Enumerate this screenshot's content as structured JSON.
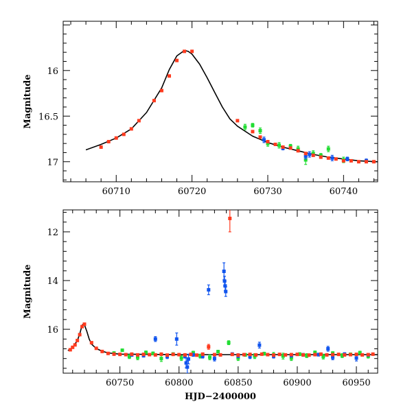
{
  "chart_data": [
    {
      "type": "scatter",
      "title": "",
      "xlabel": "",
      "ylabel": "Magnitude",
      "xlim": [
        60703,
        60744.5
      ],
      "ylim": [
        17.22,
        15.46
      ],
      "y_inverted": true,
      "x_ticks": [
        60710,
        60720,
        60730,
        60740
      ],
      "x_tick_labels": [
        "60710",
        "60720",
        "60730",
        "60740"
      ],
      "y_ticks": [
        16,
        16.5,
        17
      ],
      "y_tick_labels": [
        "16",
        "16.5",
        "17"
      ],
      "model_curve": {
        "name": "model",
        "color": "#000000",
        "x": [
          60706,
          60708,
          60710,
          60712,
          60714,
          60716,
          60717,
          60718,
          60719,
          60719.5,
          60720,
          60721,
          60722,
          60723,
          60724,
          60725,
          60726,
          60728,
          60730,
          60732,
          60734,
          60736,
          60738,
          60740,
          60742,
          60744.5
        ],
        "y": [
          16.87,
          16.81,
          16.74,
          16.64,
          16.46,
          16.19,
          15.99,
          15.84,
          15.78,
          15.79,
          15.82,
          15.93,
          16.08,
          16.24,
          16.4,
          16.53,
          16.61,
          16.72,
          16.79,
          16.84,
          16.88,
          16.92,
          16.95,
          16.97,
          16.99,
          17.0
        ]
      },
      "series": [
        {
          "name": "red",
          "color": "#ff3b1f",
          "x": [
            60708,
            60709,
            60710,
            60711,
            60712,
            60713,
            60715,
            60716,
            60717,
            60718,
            60719,
            60720,
            60726,
            60728,
            60729,
            60730,
            60731,
            60732,
            60733,
            60734,
            60735,
            60736,
            60737,
            60738,
            60739,
            60740,
            60741,
            60742,
            60743,
            60744
          ],
          "y": [
            16.84,
            16.78,
            16.74,
            16.7,
            16.64,
            16.55,
            16.33,
            16.22,
            16.06,
            15.89,
            15.79,
            15.79,
            16.55,
            16.67,
            16.73,
            16.78,
            16.81,
            16.84,
            16.85,
            16.88,
            16.91,
            16.93,
            16.95,
            16.96,
            16.97,
            16.99,
            16.99,
            17.0,
            17.0,
            17.0
          ],
          "err": [
            0.01,
            0.01,
            0.01,
            0.01,
            0.01,
            0.01,
            0.01,
            0.01,
            0.01,
            0.01,
            0.01,
            0.01,
            0.01,
            0.01,
            0.01,
            0.01,
            0.01,
            0.01,
            0.01,
            0.01,
            0.01,
            0.01,
            0.01,
            0.01,
            0.01,
            0.01,
            0.01,
            0.01,
            0.01,
            0.01
          ]
        },
        {
          "name": "green",
          "color": "#22dd33",
          "x": [
            60727,
            60728,
            60729,
            60730,
            60731.5,
            60733,
            60734,
            60735,
            60736,
            60737,
            60738,
            60740
          ],
          "y": [
            16.62,
            16.6,
            16.66,
            16.8,
            16.82,
            16.83,
            16.86,
            16.98,
            16.91,
            16.93,
            16.86,
            16.98
          ],
          "err": [
            0.03,
            0.02,
            0.03,
            0.03,
            0.03,
            0.02,
            0.03,
            0.05,
            0.03,
            0.02,
            0.03,
            0.03
          ]
        },
        {
          "name": "blue",
          "color": "#1155ee",
          "x": [
            60729.5,
            60732,
            60735,
            60735.5,
            60738.5,
            60740.5,
            60743
          ],
          "y": [
            16.76,
            16.85,
            16.94,
            16.92,
            16.96,
            16.97,
            16.99
          ],
          "err": [
            0.03,
            0.02,
            0.03,
            0.03,
            0.03,
            0.02,
            0.02
          ]
        }
      ]
    },
    {
      "type": "scatter",
      "title": "",
      "xlabel": "HJD−2400000",
      "ylabel": "Magnitude",
      "xlim": [
        60702,
        60968
      ],
      "ylim": [
        17.8,
        11.1
      ],
      "y_inverted": true,
      "x_ticks": [
        60750,
        60800,
        60850,
        60900,
        60950
      ],
      "x_tick_labels": [
        "60750",
        "60800",
        "60850",
        "60900",
        "60950"
      ],
      "y_ticks": [
        12,
        14,
        16
      ],
      "y_tick_labels": [
        "12",
        "14",
        "16"
      ],
      "model_curve": {
        "name": "model",
        "color": "#000000",
        "x": [
          60706,
          60710,
          60714,
          60716,
          60718,
          60719,
          60720,
          60722,
          60724,
          60726,
          60730,
          60735,
          60740,
          60750,
          60800,
          60850,
          60900,
          60968
        ],
        "y": [
          16.87,
          16.74,
          16.46,
          16.19,
          15.84,
          15.78,
          15.82,
          16.08,
          16.4,
          16.61,
          16.79,
          16.9,
          16.97,
          17.02,
          17.04,
          17.04,
          17.04,
          17.04
        ]
      },
      "series": [
        {
          "name": "red",
          "color": "#ff3b1f",
          "x": [
            60708,
            60710,
            60712,
            60714,
            60716,
            60718,
            60720,
            60726,
            60730,
            60735,
            60740,
            60745,
            60750,
            60755,
            60760,
            60765,
            60770,
            60775,
            60780,
            60785,
            60790,
            60795,
            60800,
            60805,
            60810,
            60815,
            60820,
            60825,
            60830,
            60835,
            60843,
            60845,
            60850,
            60855,
            60860,
            60865,
            60870,
            60875,
            60880,
            60885,
            60890,
            60895,
            60900,
            60905,
            60910,
            60915,
            60920,
            60925,
            60930,
            60935,
            60940,
            60945,
            60950,
            60955,
            60960,
            60964
          ],
          "y": [
            16.84,
            16.74,
            16.64,
            16.46,
            16.22,
            15.89,
            15.79,
            16.55,
            16.78,
            16.91,
            16.99,
            17.02,
            17.03,
            17.04,
            17.02,
            17.05,
            17.03,
            17.04,
            17.05,
            17.02,
            17.06,
            17.03,
            17.04,
            17.05,
            17.03,
            17.06,
            17.02,
            16.72,
            17.04,
            17.05,
            11.45,
            17.03,
            17.06,
            17.04,
            17.03,
            17.05,
            17.02,
            17.04,
            17.06,
            17.03,
            17.05,
            17.04,
            17.03,
            17.05,
            17.06,
            17.04,
            17.02,
            17.05,
            17.04,
            17.03,
            17.05,
            17.04,
            17.03,
            17.05,
            17.04,
            17.02
          ],
          "err": [
            0.02,
            0.02,
            0.02,
            0.02,
            0.02,
            0.02,
            0.02,
            0.02,
            0.02,
            0.02,
            0.02,
            0.05,
            0.05,
            0.05,
            0.05,
            0.05,
            0.05,
            0.05,
            0.05,
            0.05,
            0.05,
            0.05,
            0.05,
            0.05,
            0.05,
            0.05,
            0.05,
            0.1,
            0.05,
            0.05,
            0.55,
            0.05,
            0.05,
            0.05,
            0.05,
            0.05,
            0.05,
            0.05,
            0.05,
            0.05,
            0.05,
            0.05,
            0.05,
            0.05,
            0.05,
            0.05,
            0.05,
            0.05,
            0.05,
            0.05,
            0.05,
            0.05,
            0.05,
            0.05,
            0.05,
            0.05
          ]
        },
        {
          "name": "green",
          "color": "#22dd33",
          "x": [
            60745,
            60752,
            60758,
            60765,
            60772,
            60778,
            60785,
            60795,
            60802,
            60812,
            60818,
            60826,
            60833,
            60842,
            60850,
            60856,
            60864,
            60872,
            60880,
            60888,
            60895,
            60902,
            60908,
            60915,
            60922,
            60930,
            60938,
            60945,
            60953,
            60960
          ],
          "y": [
            16.98,
            16.86,
            17.12,
            17.15,
            16.95,
            16.99,
            17.2,
            17.02,
            17.18,
            16.96,
            17.1,
            17.15,
            16.92,
            16.55,
            17.18,
            17.05,
            17.1,
            17.0,
            17.05,
            17.1,
            17.18,
            17.02,
            17.08,
            16.95,
            17.12,
            16.98,
            17.08,
            17.03,
            16.96,
            17.1
          ],
          "err": [
            0.06,
            0.05,
            0.08,
            0.1,
            0.06,
            0.06,
            0.12,
            0.06,
            0.1,
            0.06,
            0.08,
            0.1,
            0.06,
            0.08,
            0.1,
            0.06,
            0.1,
            0.06,
            0.1,
            0.12,
            0.1,
            0.06,
            0.08,
            0.06,
            0.1,
            0.06,
            0.08,
            0.06,
            0.06,
            0.08
          ]
        },
        {
          "name": "blue",
          "color": "#1155ee",
          "x": [
            60760,
            60770,
            60780,
            60790,
            60798,
            60805,
            60806,
            60807,
            60808,
            60812,
            60820,
            60825,
            60830,
            60838,
            60838.5,
            60839,
            60839.5,
            60845,
            60850,
            60860,
            60868,
            60880,
            60895,
            60905,
            60918,
            60926,
            60930,
            60940,
            60950,
            60960
          ],
          "y": [
            17.05,
            17.08,
            16.4,
            17.12,
            16.4,
            17.1,
            17.38,
            17.55,
            17.22,
            17.05,
            17.1,
            14.38,
            17.2,
            13.62,
            14.02,
            14.22,
            14.45,
            17.02,
            17.08,
            17.12,
            16.65,
            17.1,
            17.08,
            17.05,
            17.04,
            16.8,
            17.15,
            17.02,
            17.18,
            17.05
          ],
          "err": [
            0.06,
            0.06,
            0.1,
            0.08,
            0.25,
            0.08,
            0.2,
            0.25,
            0.2,
            0.06,
            0.08,
            0.2,
            0.1,
            0.35,
            0.2,
            0.2,
            0.2,
            0.06,
            0.08,
            0.08,
            0.12,
            0.08,
            0.06,
            0.06,
            0.06,
            0.1,
            0.1,
            0.06,
            0.12,
            0.06
          ]
        }
      ]
    }
  ]
}
